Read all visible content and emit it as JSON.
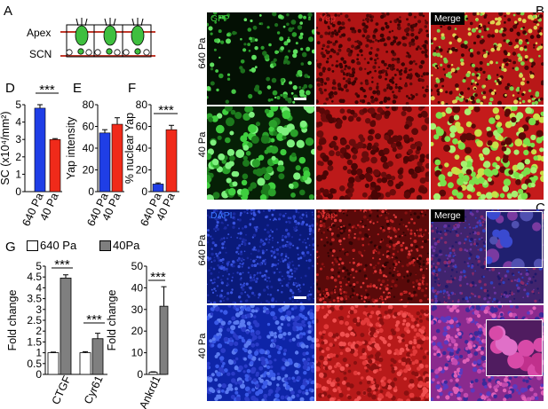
{
  "panels": {
    "A": {
      "label": "A",
      "apex": "Apex",
      "scn": "SCN"
    },
    "B": {
      "label": "B",
      "col_tags": [
        "GFP",
        "Yap",
        "Merge"
      ],
      "rows": [
        "640 Pa",
        "40 Pa"
      ],
      "tag_colors": [
        "#3bd13b",
        "#e03030",
        "#ffffff"
      ]
    },
    "C": {
      "label": "C",
      "col_tags": [
        "DAPI",
        "Yap",
        "Merge"
      ],
      "rows": [
        "640 Pa",
        "40 Pa"
      ],
      "tag_colors": [
        "#3a78ff",
        "#e03030",
        "#ffffff"
      ]
    },
    "D": {
      "label": "D",
      "ylabel": "SC (x10⁴/mm²)",
      "sig": "***",
      "categories": [
        "640 Pa",
        "40 Pa"
      ]
    },
    "E": {
      "label": "E",
      "ylabel": "Yap intensity",
      "categories": [
        "640 Pa",
        "40 Pa"
      ]
    },
    "F": {
      "label": "F",
      "ylabel": "% nuclear Yap",
      "sig": "***",
      "categories": [
        "640 Pa",
        "40 Pa"
      ]
    },
    "G": {
      "label": "G",
      "legend": [
        "640 Pa",
        "40Pa"
      ],
      "ylabel": "Fold change",
      "sig": "***"
    }
  },
  "chart_data": [
    {
      "type": "bar",
      "panel": "D",
      "categories": [
        "640 Pa",
        "40 Pa"
      ],
      "values": [
        4.8,
        3.0
      ],
      "errors": [
        0.2,
        0.05
      ],
      "ylabel": "SC (x10⁴/mm²)",
      "ylim": [
        0,
        5
      ],
      "yticks": [
        "0",
        "1",
        "2",
        "3",
        "4",
        "5"
      ],
      "colors": [
        "#1f3ee6",
        "#f02a1a"
      ]
    },
    {
      "type": "bar",
      "panel": "E",
      "categories": [
        "640 Pa",
        "40 Pa"
      ],
      "values": [
        54,
        62
      ],
      "errors": [
        3,
        6
      ],
      "ylabel": "Yap intensity",
      "ylim": [
        0,
        80
      ],
      "yticks": [
        "0",
        "20",
        "40",
        "60",
        "80"
      ],
      "colors": [
        "#1f3ee6",
        "#f02a1a"
      ]
    },
    {
      "type": "bar",
      "panel": "F",
      "categories": [
        "640 Pa",
        "40 Pa"
      ],
      "values": [
        7,
        57
      ],
      "errors": [
        1,
        4
      ],
      "ylabel": "% nuclear Yap",
      "ylim": [
        0,
        80
      ],
      "yticks": [
        "0",
        "20",
        "40",
        "60",
        "80"
      ],
      "colors": [
        "#1f3ee6",
        "#f02a1a"
      ]
    },
    {
      "type": "bar",
      "panel": "G-left",
      "categories": [
        "CTGF",
        "Cyr61"
      ],
      "series": [
        {
          "name": "640 Pa",
          "values": [
            1.0,
            1.0
          ],
          "errors": [
            0.03,
            0.05
          ]
        },
        {
          "name": "40Pa",
          "values": [
            4.45,
            1.65
          ],
          "errors": [
            0.15,
            0.25
          ]
        }
      ],
      "ylabel": "Fold change",
      "ylim": [
        0,
        5
      ],
      "yticks": [
        "0",
        "0.5",
        "1",
        "1.5",
        "2",
        "2.5",
        "3",
        "3.5",
        "4",
        "4.5",
        "5"
      ],
      "colors": [
        "#ffffff",
        "#7f7f7f"
      ]
    },
    {
      "type": "bar",
      "panel": "G-right",
      "categories": [
        "Ankrd1"
      ],
      "series": [
        {
          "name": "640 Pa",
          "values": [
            1.0
          ],
          "errors": [
            0.2
          ]
        },
        {
          "name": "40Pa",
          "values": [
            31.5
          ],
          "errors": [
            9
          ]
        }
      ],
      "ylabel": "Fold change",
      "ylim": [
        0,
        50
      ],
      "yticks": [
        "0",
        "10",
        "20",
        "30",
        "40",
        "50"
      ],
      "colors": [
        "#ffffff",
        "#7f7f7f"
      ]
    }
  ]
}
